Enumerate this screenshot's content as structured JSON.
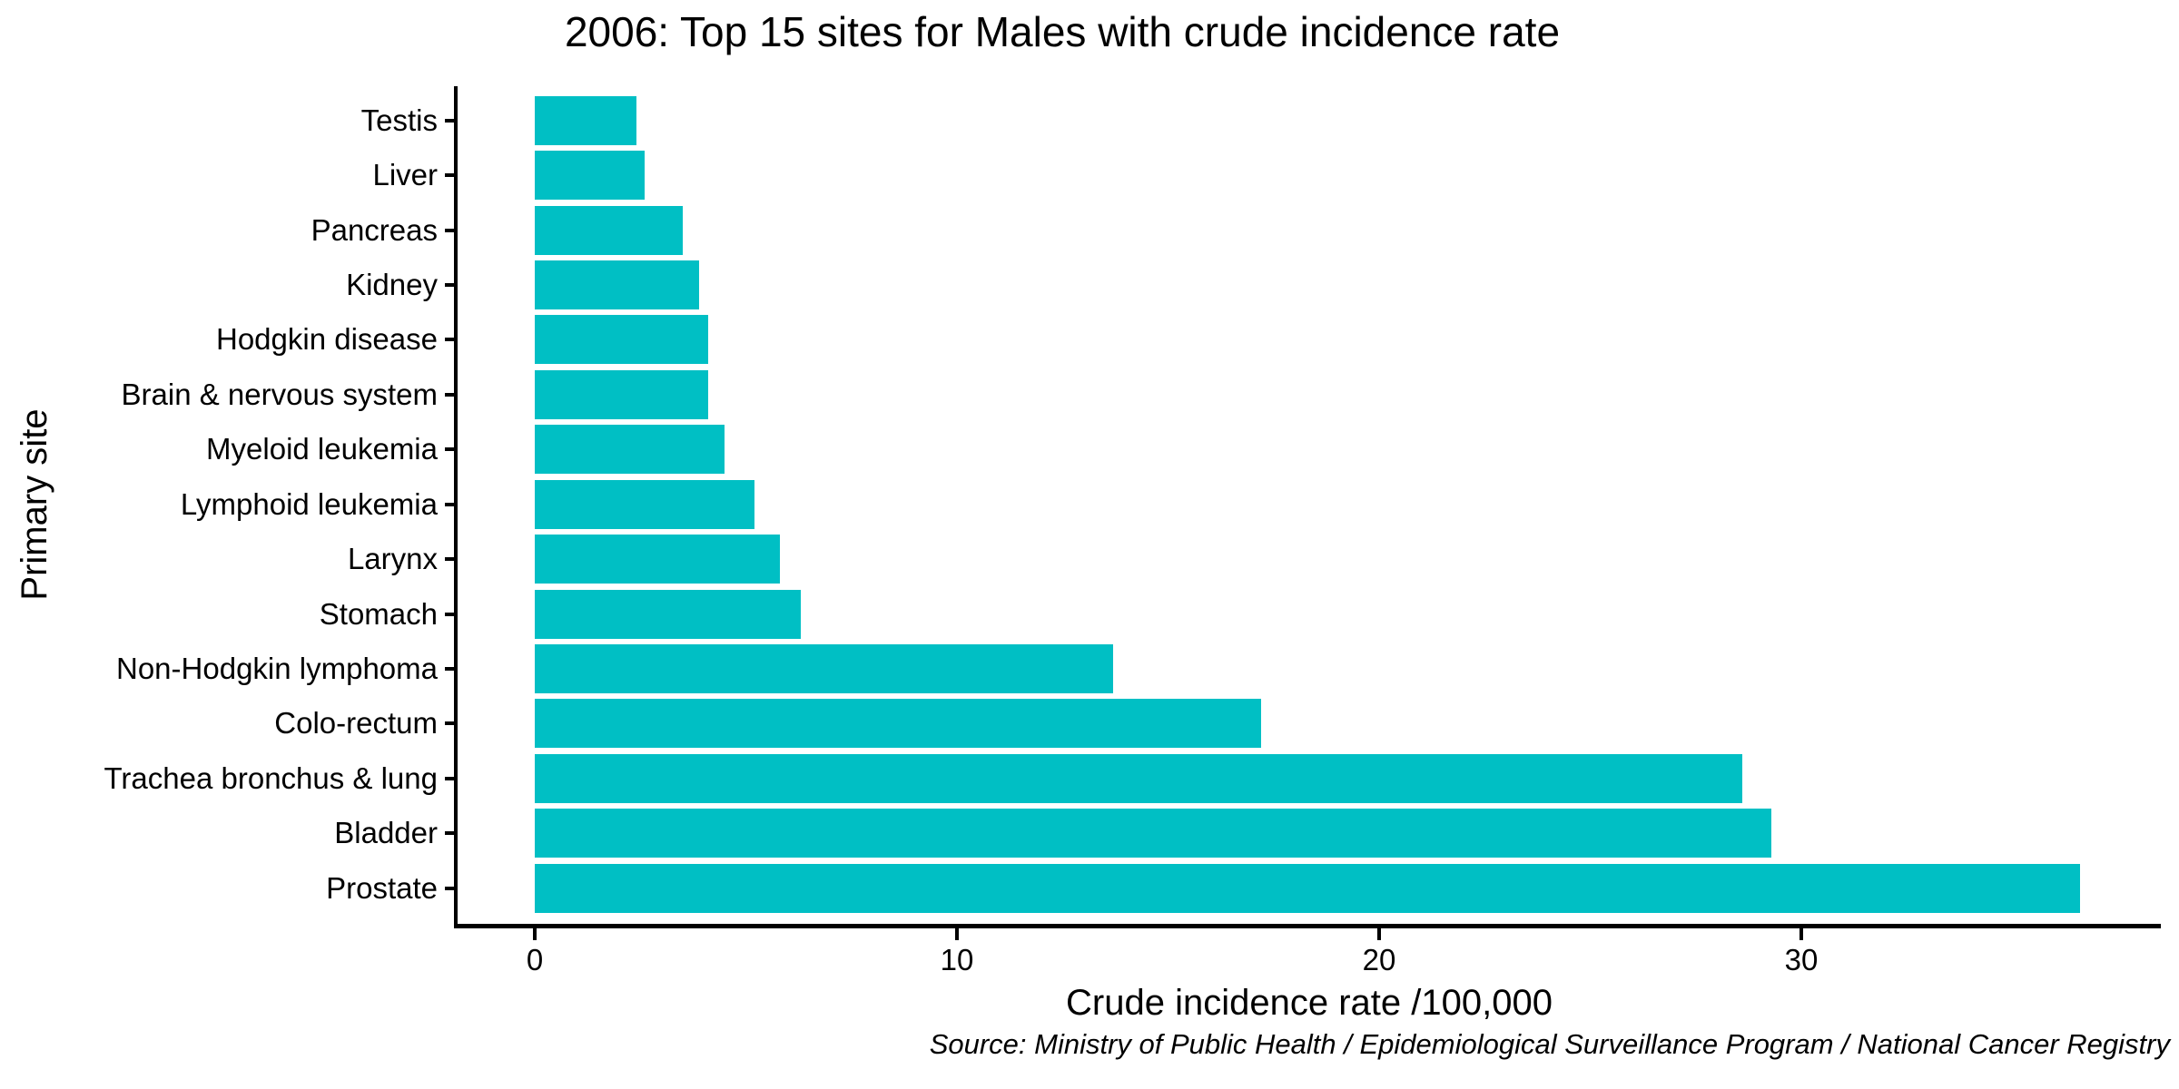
{
  "chart": {
    "title": "2006: Top 15 sites for Males with crude incidence rate",
    "xlabel": "Crude incidence rate /100,000",
    "ylabel": "Primary site",
    "source": "Source: Ministry of Public Health / Epidemiological Surveillance Program / National Cancer Registry"
  },
  "chart_data": {
    "type": "bar",
    "orientation": "horizontal",
    "title": "2006: Top 15 sites for Males with crude incidence rate",
    "xlabel": "Crude incidence rate /100,000",
    "ylabel": "Primary site",
    "source": "Source: Ministry of Public Health / Epidemiological Surveillance Program / National Cancer Registry",
    "categories": [
      "Testis",
      "Liver",
      "Pancreas",
      "Kidney",
      "Hodgkin disease",
      "Brain & nervous system",
      "Myeloid leukemia",
      "Lymphoid leukemia",
      "Larynx",
      "Stomach",
      "Non-Hodgkin lymphoma",
      "Colo-rectum",
      "Trachea bronchus & lung",
      "Bladder",
      "Prostate"
    ],
    "values": [
      2.4,
      2.6,
      3.5,
      3.9,
      4.1,
      4.1,
      4.5,
      5.2,
      5.8,
      6.3,
      13.7,
      17.2,
      28.6,
      29.3,
      36.6
    ],
    "x_ticks": [
      0,
      10,
      20,
      30
    ],
    "x_tick_labels": [
      "0",
      "10",
      "20",
      "30"
    ],
    "xlim": [
      0,
      38.5
    ],
    "grid": false,
    "legend": "none",
    "bar_color": "#00BFC4",
    "axis_color": "#000000",
    "text_color": "#000000",
    "background_color": "#ffffff"
  }
}
